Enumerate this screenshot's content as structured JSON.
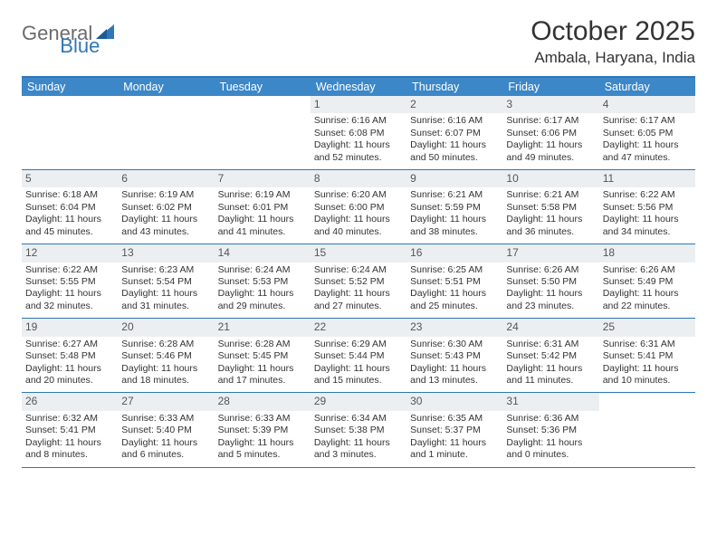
{
  "logo": {
    "text1": "General",
    "text2": "Blue"
  },
  "title": "October 2025",
  "location": "Ambala, Haryana, India",
  "colors": {
    "header_bg": "#3c87c7",
    "border": "#2f77b6",
    "daynum_bg": "#eceff1",
    "text": "#333333",
    "logo_gray": "#6b6b6b"
  },
  "dayheads": [
    "Sunday",
    "Monday",
    "Tuesday",
    "Wednesday",
    "Thursday",
    "Friday",
    "Saturday"
  ],
  "weeks": [
    [
      {
        "day": "",
        "lines": []
      },
      {
        "day": "",
        "lines": []
      },
      {
        "day": "",
        "lines": []
      },
      {
        "day": "1",
        "lines": [
          "Sunrise: 6:16 AM",
          "Sunset: 6:08 PM",
          "Daylight: 11 hours and 52 minutes."
        ]
      },
      {
        "day": "2",
        "lines": [
          "Sunrise: 6:16 AM",
          "Sunset: 6:07 PM",
          "Daylight: 11 hours and 50 minutes."
        ]
      },
      {
        "day": "3",
        "lines": [
          "Sunrise: 6:17 AM",
          "Sunset: 6:06 PM",
          "Daylight: 11 hours and 49 minutes."
        ]
      },
      {
        "day": "4",
        "lines": [
          "Sunrise: 6:17 AM",
          "Sunset: 6:05 PM",
          "Daylight: 11 hours and 47 minutes."
        ]
      }
    ],
    [
      {
        "day": "5",
        "lines": [
          "Sunrise: 6:18 AM",
          "Sunset: 6:04 PM",
          "Daylight: 11 hours and 45 minutes."
        ]
      },
      {
        "day": "6",
        "lines": [
          "Sunrise: 6:19 AM",
          "Sunset: 6:02 PM",
          "Daylight: 11 hours and 43 minutes."
        ]
      },
      {
        "day": "7",
        "lines": [
          "Sunrise: 6:19 AM",
          "Sunset: 6:01 PM",
          "Daylight: 11 hours and 41 minutes."
        ]
      },
      {
        "day": "8",
        "lines": [
          "Sunrise: 6:20 AM",
          "Sunset: 6:00 PM",
          "Daylight: 11 hours and 40 minutes."
        ]
      },
      {
        "day": "9",
        "lines": [
          "Sunrise: 6:21 AM",
          "Sunset: 5:59 PM",
          "Daylight: 11 hours and 38 minutes."
        ]
      },
      {
        "day": "10",
        "lines": [
          "Sunrise: 6:21 AM",
          "Sunset: 5:58 PM",
          "Daylight: 11 hours and 36 minutes."
        ]
      },
      {
        "day": "11",
        "lines": [
          "Sunrise: 6:22 AM",
          "Sunset: 5:56 PM",
          "Daylight: 11 hours and 34 minutes."
        ]
      }
    ],
    [
      {
        "day": "12",
        "lines": [
          "Sunrise: 6:22 AM",
          "Sunset: 5:55 PM",
          "Daylight: 11 hours and 32 minutes."
        ]
      },
      {
        "day": "13",
        "lines": [
          "Sunrise: 6:23 AM",
          "Sunset: 5:54 PM",
          "Daylight: 11 hours and 31 minutes."
        ]
      },
      {
        "day": "14",
        "lines": [
          "Sunrise: 6:24 AM",
          "Sunset: 5:53 PM",
          "Daylight: 11 hours and 29 minutes."
        ]
      },
      {
        "day": "15",
        "lines": [
          "Sunrise: 6:24 AM",
          "Sunset: 5:52 PM",
          "Daylight: 11 hours and 27 minutes."
        ]
      },
      {
        "day": "16",
        "lines": [
          "Sunrise: 6:25 AM",
          "Sunset: 5:51 PM",
          "Daylight: 11 hours and 25 minutes."
        ]
      },
      {
        "day": "17",
        "lines": [
          "Sunrise: 6:26 AM",
          "Sunset: 5:50 PM",
          "Daylight: 11 hours and 23 minutes."
        ]
      },
      {
        "day": "18",
        "lines": [
          "Sunrise: 6:26 AM",
          "Sunset: 5:49 PM",
          "Daylight: 11 hours and 22 minutes."
        ]
      }
    ],
    [
      {
        "day": "19",
        "lines": [
          "Sunrise: 6:27 AM",
          "Sunset: 5:48 PM",
          "Daylight: 11 hours and 20 minutes."
        ]
      },
      {
        "day": "20",
        "lines": [
          "Sunrise: 6:28 AM",
          "Sunset: 5:46 PM",
          "Daylight: 11 hours and 18 minutes."
        ]
      },
      {
        "day": "21",
        "lines": [
          "Sunrise: 6:28 AM",
          "Sunset: 5:45 PM",
          "Daylight: 11 hours and 17 minutes."
        ]
      },
      {
        "day": "22",
        "lines": [
          "Sunrise: 6:29 AM",
          "Sunset: 5:44 PM",
          "Daylight: 11 hours and 15 minutes."
        ]
      },
      {
        "day": "23",
        "lines": [
          "Sunrise: 6:30 AM",
          "Sunset: 5:43 PM",
          "Daylight: 11 hours and 13 minutes."
        ]
      },
      {
        "day": "24",
        "lines": [
          "Sunrise: 6:31 AM",
          "Sunset: 5:42 PM",
          "Daylight: 11 hours and 11 minutes."
        ]
      },
      {
        "day": "25",
        "lines": [
          "Sunrise: 6:31 AM",
          "Sunset: 5:41 PM",
          "Daylight: 11 hours and 10 minutes."
        ]
      }
    ],
    [
      {
        "day": "26",
        "lines": [
          "Sunrise: 6:32 AM",
          "Sunset: 5:41 PM",
          "Daylight: 11 hours and 8 minutes."
        ]
      },
      {
        "day": "27",
        "lines": [
          "Sunrise: 6:33 AM",
          "Sunset: 5:40 PM",
          "Daylight: 11 hours and 6 minutes."
        ]
      },
      {
        "day": "28",
        "lines": [
          "Sunrise: 6:33 AM",
          "Sunset: 5:39 PM",
          "Daylight: 11 hours and 5 minutes."
        ]
      },
      {
        "day": "29",
        "lines": [
          "Sunrise: 6:34 AM",
          "Sunset: 5:38 PM",
          "Daylight: 11 hours and 3 minutes."
        ]
      },
      {
        "day": "30",
        "lines": [
          "Sunrise: 6:35 AM",
          "Sunset: 5:37 PM",
          "Daylight: 11 hours and 1 minute."
        ]
      },
      {
        "day": "31",
        "lines": [
          "Sunrise: 6:36 AM",
          "Sunset: 5:36 PM",
          "Daylight: 11 hours and 0 minutes."
        ]
      },
      {
        "day": "",
        "lines": []
      }
    ]
  ]
}
